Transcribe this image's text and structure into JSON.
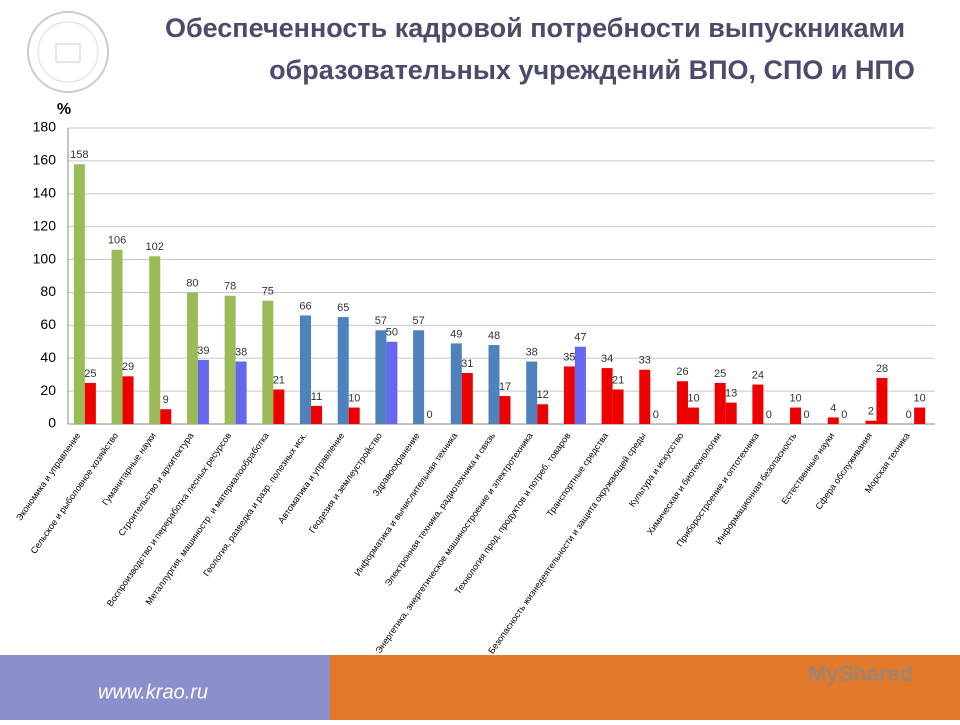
{
  "header": {
    "title_line1": "Обеспеченность кадровой потребности выпускниками",
    "title_line2": "образовательных учреждений ВПО, СПО и НПО"
  },
  "chart_data": {
    "type": "bar",
    "y_label": "%",
    "categories": [
      "Экономика и управление",
      "Сельское и рыболовное хозяйство",
      "Гуманитарные науки",
      "Строительство и архитектура",
      "Воспроизводство и переработка лесных ресурсов",
      "Металлургия, машиностр. и материалообработка",
      "Геология, разведка и разр. полезных иск.",
      "Автоматика и управление",
      "Геодезия и землеустройство",
      "Здравоохранение",
      "Информатика и вычислительная техника",
      "Электронная техника, радиотехника и связь",
      "Энергетика, энергетическое машиностроение и электротехника",
      "Технология прод. продуктов и потреб. товаров",
      "Транспортные средства",
      "Безопасность жизнедеятельности и защита окружающей среды",
      "Культура и искусство",
      "Химическая и биотехнологии",
      "Приборостроение и оптотехника",
      "Информационная безопасность",
      "Естественные науки",
      "Сфера обслуживания",
      "Морская техника"
    ],
    "series": [
      {
        "values": [
          158,
          106,
          102,
          80,
          78,
          75,
          66,
          65,
          57,
          57,
          49,
          48,
          38,
          35,
          34,
          33,
          26,
          25,
          24,
          10,
          4,
          2,
          0
        ],
        "colors": [
          "#9bbb59",
          "#9bbb59",
          "#9bbb59",
          "#9bbb59",
          "#9bbb59",
          "#9bbb59",
          "#4f81bd",
          "#4f81bd",
          "#4f81bd",
          "#4f81bd",
          "#4f81bd",
          "#4f81bd",
          "#4f81bd",
          "#ee0000",
          "#ee0000",
          "#ee0000",
          "#ee0000",
          "#ee0000",
          "#ee0000",
          "#ee0000",
          "#ee0000",
          "#ee0000",
          "#ee0000"
        ]
      },
      {
        "values": [
          25,
          29,
          9,
          39,
          38,
          21,
          11,
          10,
          50,
          0,
          31,
          17,
          12,
          47,
          21,
          0,
          10,
          13,
          0,
          0,
          0,
          28,
          10
        ],
        "colors": [
          "#ee0000",
          "#ee0000",
          "#ee0000",
          "#6666ee",
          "#6666ee",
          "#ee0000",
          "#ee0000",
          "#ee0000",
          "#6666ee",
          "#ee0000",
          "#ee0000",
          "#ee0000",
          "#ee0000",
          "#6666ee",
          "#ee0000",
          "#ee0000",
          "#ee0000",
          "#ee0000",
          "#ee0000",
          "#ee0000",
          "#ee0000",
          "#ee0000",
          "#ee0000"
        ]
      }
    ],
    "ylim": [
      0,
      180
    ],
    "yticks": [
      0,
      20,
      40,
      60,
      80,
      100,
      120,
      140,
      160,
      180
    ],
    "grid": true
  },
  "footer": {
    "site": "www.krao.ru",
    "watermark": "MyShared"
  }
}
